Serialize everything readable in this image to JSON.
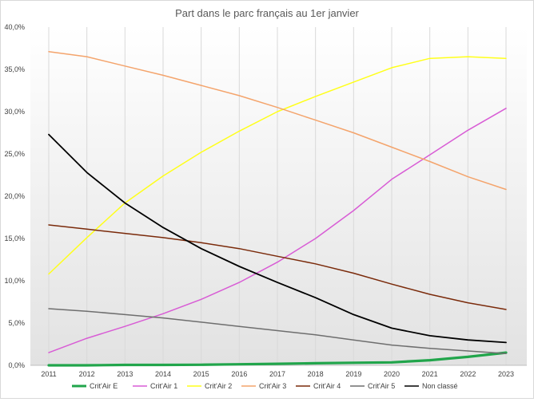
{
  "chart_data": {
    "type": "line",
    "title": "Part dans le parc français au 1er janvier",
    "xlabel": "",
    "ylabel": "",
    "ylim": [
      0,
      40
    ],
    "y_ticks": [
      "0,0%",
      "5,0%",
      "10,0%",
      "15,0%",
      "20,0%",
      "25,0%",
      "30,0%",
      "35,0%",
      "40,0%"
    ],
    "grid": "vertical",
    "legend_position": "bottom",
    "categories": [
      "2011",
      "2012",
      "2013",
      "2014",
      "2015",
      "2016",
      "2017",
      "2018",
      "2019",
      "2020",
      "2021",
      "2022",
      "2023"
    ],
    "series": [
      {
        "name": "Crit'Air E",
        "color": "#21a54b",
        "width": 3.2,
        "values": [
          0.0,
          0.0,
          0.05,
          0.05,
          0.07,
          0.12,
          0.18,
          0.25,
          0.3,
          0.35,
          0.6,
          1.0,
          1.5
        ]
      },
      {
        "name": "Crit'Air 1",
        "color": "#d85cd5",
        "width": 1.5,
        "values": [
          1.5,
          3.2,
          4.6,
          6.1,
          7.8,
          9.8,
          12.2,
          15.0,
          18.3,
          22.0,
          24.9,
          27.8,
          30.4
        ]
      },
      {
        "name": "Crit'Air 2",
        "color": "#ffff1a",
        "width": 1.5,
        "values": [
          10.8,
          15.1,
          19.2,
          22.4,
          25.2,
          27.7,
          30.0,
          31.8,
          33.5,
          35.2,
          36.3,
          36.5,
          36.3
        ]
      },
      {
        "name": "Crit'Air 3",
        "color": "#f4a46c",
        "width": 1.5,
        "values": [
          37.1,
          36.5,
          35.4,
          34.3,
          33.1,
          31.9,
          30.5,
          29.0,
          27.5,
          25.8,
          24.1,
          22.3,
          20.8
        ]
      },
      {
        "name": "Crit'Air 4",
        "color": "#7a2a0a",
        "width": 1.5,
        "values": [
          16.6,
          16.1,
          15.6,
          15.1,
          14.5,
          13.8,
          12.9,
          12.0,
          10.9,
          9.6,
          8.4,
          7.4,
          6.6
        ]
      },
      {
        "name": "Crit'Air 5",
        "color": "#6e6e6e",
        "width": 1.5,
        "values": [
          6.7,
          6.4,
          6.0,
          5.6,
          5.1,
          4.6,
          4.1,
          3.6,
          3.0,
          2.4,
          2.0,
          1.7,
          1.4
        ]
      },
      {
        "name": "Non classé",
        "color": "#000000",
        "width": 1.8,
        "values": [
          27.3,
          22.8,
          19.2,
          16.3,
          13.8,
          11.7,
          9.8,
          8.0,
          6.0,
          4.4,
          3.5,
          3.0,
          2.7
        ]
      }
    ]
  }
}
